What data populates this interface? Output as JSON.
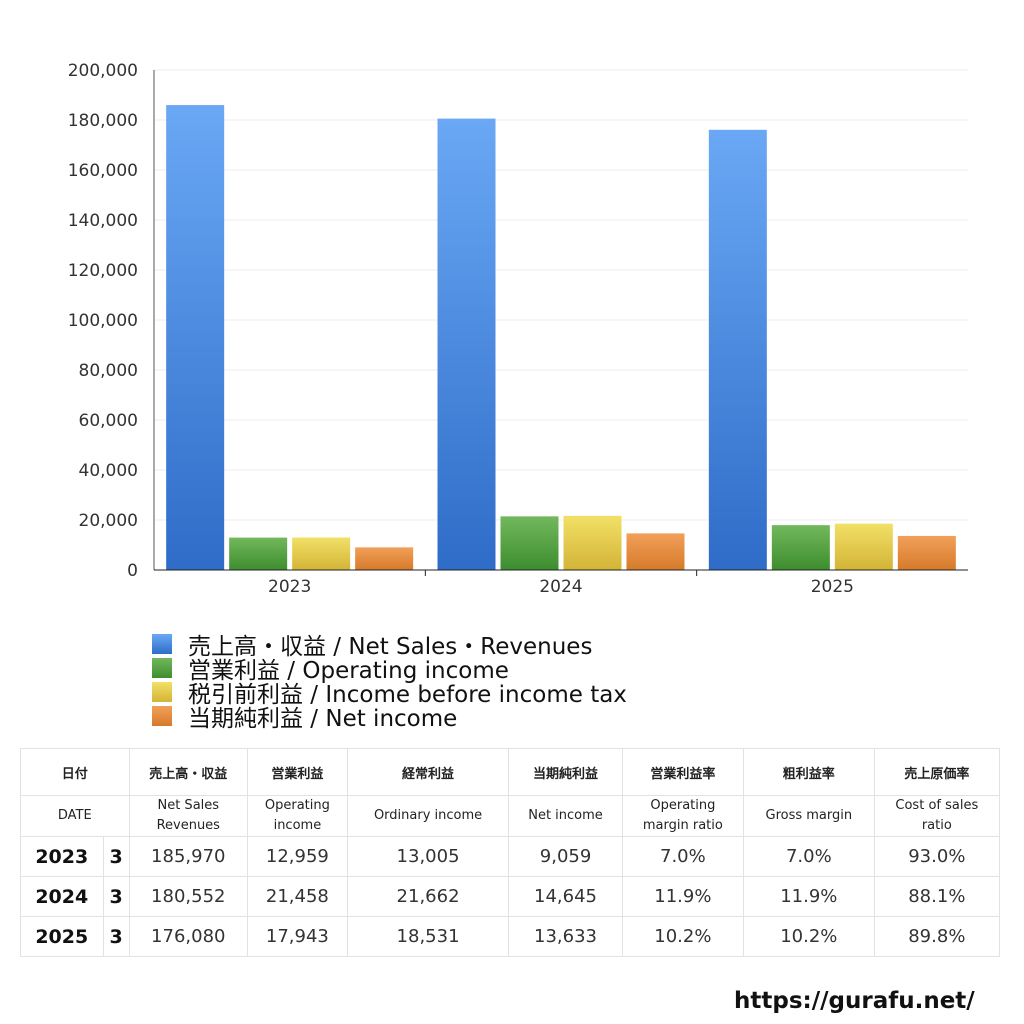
{
  "chart_data": {
    "type": "bar",
    "categories": [
      "2023",
      "2024",
      "2025"
    ],
    "series": [
      {
        "name": "売上高・収益 / Net Sales・Revenues",
        "values": [
          185970,
          180552,
          176080
        ],
        "color_top": "#6aa8f5",
        "color_bottom": "#2f6cc8"
      },
      {
        "name": "営業利益 / Operating income",
        "values": [
          12959,
          21458,
          17943
        ],
        "color_top": "#72b85c",
        "color_bottom": "#3d8d2f"
      },
      {
        "name": "税引前利益 / Income before income tax",
        "values": [
          13005,
          21662,
          18531
        ],
        "color_top": "#f2e067",
        "color_bottom": "#d3b436"
      },
      {
        "name": "当期純利益 / Net income",
        "values": [
          9059,
          14645,
          13633
        ],
        "color_top": "#f1a05a",
        "color_bottom": "#d67a2a"
      }
    ],
    "ylim": [
      0,
      200000
    ],
    "yticks": [
      0,
      20000,
      40000,
      60000,
      80000,
      100000,
      120000,
      140000,
      160000,
      180000,
      200000
    ],
    "ytick_labels": [
      "0",
      "20,000",
      "40,000",
      "60,000",
      "80,000",
      "100,000",
      "120,000",
      "140,000",
      "160,000",
      "180,000",
      "200,000"
    ],
    "legend_position": "bottom-left"
  },
  "table": {
    "headers_jp": [
      "日付",
      "売上高・収益",
      "営業利益",
      "経常利益",
      "当期純利益",
      "営業利益率",
      "粗利益率",
      "売上原価率"
    ],
    "headers_en": [
      "DATE",
      "Net Sales\nRevenues",
      "Operating\nincome",
      "Ordinary income",
      "Net income",
      "Operating\nmargin ratio",
      "Gross margin",
      "Cost of sales\nratio"
    ],
    "rows": [
      {
        "year": "2023",
        "month": "3",
        "sales": "185,970",
        "operating": "12,959",
        "ordinary": "13,005",
        "net": "9,059",
        "op_margin": "7.0%",
        "gross_margin": "7.0%",
        "cost_ratio": "93.0%"
      },
      {
        "year": "2024",
        "month": "3",
        "sales": "180,552",
        "operating": "21,458",
        "ordinary": "21,662",
        "net": "14,645",
        "op_margin": "11.9%",
        "gross_margin": "11.9%",
        "cost_ratio": "88.1%"
      },
      {
        "year": "2025",
        "month": "3",
        "sales": "176,080",
        "operating": "17,943",
        "ordinary": "18,531",
        "net": "13,633",
        "op_margin": "10.2%",
        "gross_margin": "10.2%",
        "cost_ratio": "89.8%"
      }
    ]
  },
  "footer": {
    "site_url": "https://gurafu.net/"
  }
}
